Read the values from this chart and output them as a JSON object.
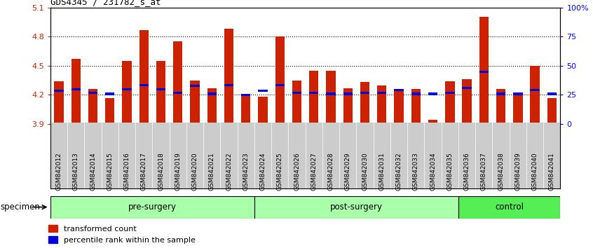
{
  "title": "GDS4345 / 231782_s_at",
  "samples": [
    "GSM842012",
    "GSM842013",
    "GSM842014",
    "GSM842015",
    "GSM842016",
    "GSM842017",
    "GSM842018",
    "GSM842019",
    "GSM842020",
    "GSM842021",
    "GSM842022",
    "GSM842023",
    "GSM842024",
    "GSM842025",
    "GSM842026",
    "GSM842027",
    "GSM842028",
    "GSM842029",
    "GSM842030",
    "GSM842031",
    "GSM842032",
    "GSM842033",
    "GSM842034",
    "GSM842035",
    "GSM842036",
    "GSM842037",
    "GSM842038",
    "GSM842039",
    "GSM842040",
    "GSM842041"
  ],
  "red_values": [
    4.34,
    4.57,
    4.26,
    4.17,
    4.55,
    4.87,
    4.55,
    4.75,
    4.35,
    4.27,
    4.88,
    4.21,
    4.18,
    4.8,
    4.35,
    4.45,
    4.45,
    4.27,
    4.33,
    4.3,
    4.26,
    4.26,
    3.94,
    4.34,
    4.36,
    5.0,
    4.26,
    4.2,
    4.5,
    4.17
  ],
  "blue_values": [
    4.24,
    4.26,
    4.22,
    4.21,
    4.26,
    4.3,
    4.26,
    4.22,
    4.29,
    4.21,
    4.3,
    4.2,
    4.24,
    4.3,
    4.22,
    4.22,
    4.21,
    4.21,
    4.22,
    4.22,
    4.25,
    4.21,
    4.21,
    4.22,
    4.27,
    4.44,
    4.21,
    4.21,
    4.25,
    4.21
  ],
  "groups": [
    {
      "label": "pre-surgery",
      "start": 0,
      "end": 12,
      "color": "#AAFFAA"
    },
    {
      "label": "post-surgery",
      "start": 12,
      "end": 24,
      "color": "#AAFFAA"
    },
    {
      "label": "control",
      "start": 24,
      "end": 30,
      "color": "#55EE55"
    }
  ],
  "ymin": 3.9,
  "ymax": 5.1,
  "yticks": [
    3.9,
    4.2,
    4.5,
    4.8,
    5.1
  ],
  "ytick_labels": [
    "3.9",
    "4.2",
    "4.5",
    "4.8",
    "5.1"
  ],
  "y2ticks": [
    0,
    25,
    50,
    75,
    100
  ],
  "y2tick_labels": [
    "0",
    "25",
    "50",
    "75",
    "100%"
  ],
  "hlines": [
    4.2,
    4.5,
    4.8
  ],
  "bar_width": 0.55,
  "red_color": "#CC2200",
  "blue_color": "#0000DD",
  "tick_bg_color": "#CCCCCC",
  "legend_labels": [
    "transformed count",
    "percentile rank within the sample"
  ],
  "specimen_label": "specimen"
}
